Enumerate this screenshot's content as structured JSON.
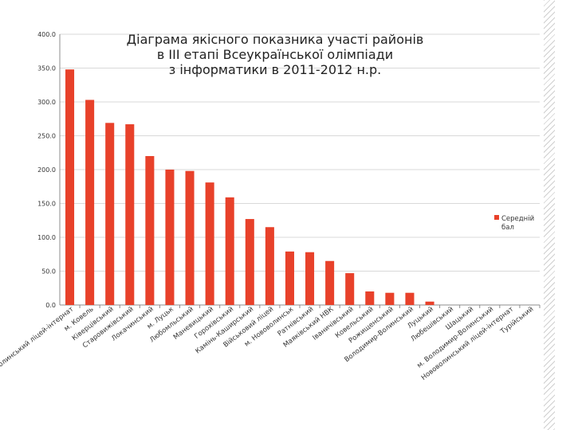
{
  "chart_data": {
    "type": "bar",
    "title_lines": [
      "Діаграма якісного показника участі районів",
      "в ІІІ етапі Всеукраїнської олімпіади",
      "з інформатики в 2011-2012 н.р."
    ],
    "categories": [
      "Волинський ліцей-інтернат",
      "м. Ковель",
      "Ківерцівський",
      "Старовижівський",
      "Локачинський",
      "м. Луцьк",
      "Любомльський",
      "Маневицький",
      "Горохівський",
      "Камінь-Каширський",
      "Військовий ліцей",
      "м. Нововолинськ",
      "Ратнівський",
      "Маяківський НВК",
      "Іваничівський",
      "Ковельський",
      "Рожищенський",
      "Володимир-Волинський",
      "Луцький",
      "Любешівський",
      "Шацький",
      "м. Володимир-Волинський",
      "Нововолинський ліцей-інтернат",
      "Турійський"
    ],
    "series": [
      {
        "name": "Середній бал",
        "values": [
          348,
          303,
          269,
          267,
          220,
          200,
          198,
          181,
          159,
          127,
          115,
          79,
          78,
          65,
          47,
          20,
          18,
          18,
          5,
          0,
          0,
          0,
          0,
          0
        ]
      }
    ],
    "yticks": [
      "0.0",
      "50.0",
      "100.0",
      "150.0",
      "200.0",
      "250.0",
      "300.0",
      "350.0",
      "400.0"
    ],
    "ylim": [
      0,
      400
    ],
    "grid": true,
    "legend_position": "right",
    "colors": {
      "bar": "#e8412a",
      "grid": "#d9d9d9",
      "axis": "#8c8c8c",
      "text": "#333333"
    }
  }
}
